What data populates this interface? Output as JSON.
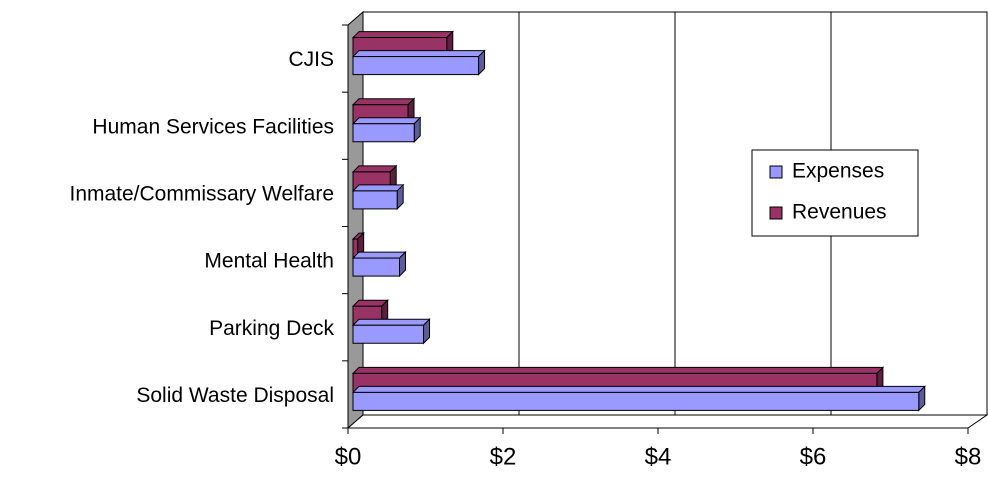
{
  "chart_data": {
    "type": "bar3d_horizontal",
    "categories": [
      "CJIS",
      "Human Services Facilities",
      "Inmate/Commissary Welfare",
      "Mental Health",
      "Parking Deck",
      "Solid Waste Disposal"
    ],
    "series": [
      {
        "name": "Expenses",
        "color": "#9999ff",
        "values": [
          1.62,
          0.79,
          0.57,
          0.6,
          0.91,
          7.3
        ]
      },
      {
        "name": "Revenues",
        "color": "#993366",
        "values": [
          1.21,
          0.71,
          0.48,
          0.06,
          0.37,
          6.76
        ]
      }
    ],
    "xlim": [
      0,
      8
    ],
    "xticks": [
      {
        "value": 0,
        "label": "$0"
      },
      {
        "value": 2,
        "label": "$2"
      },
      {
        "value": 4,
        "label": "$4"
      },
      {
        "value": 6,
        "label": "$6"
      },
      {
        "value": 8,
        "label": "$8"
      }
    ],
    "grid": true,
    "legend": "right"
  }
}
